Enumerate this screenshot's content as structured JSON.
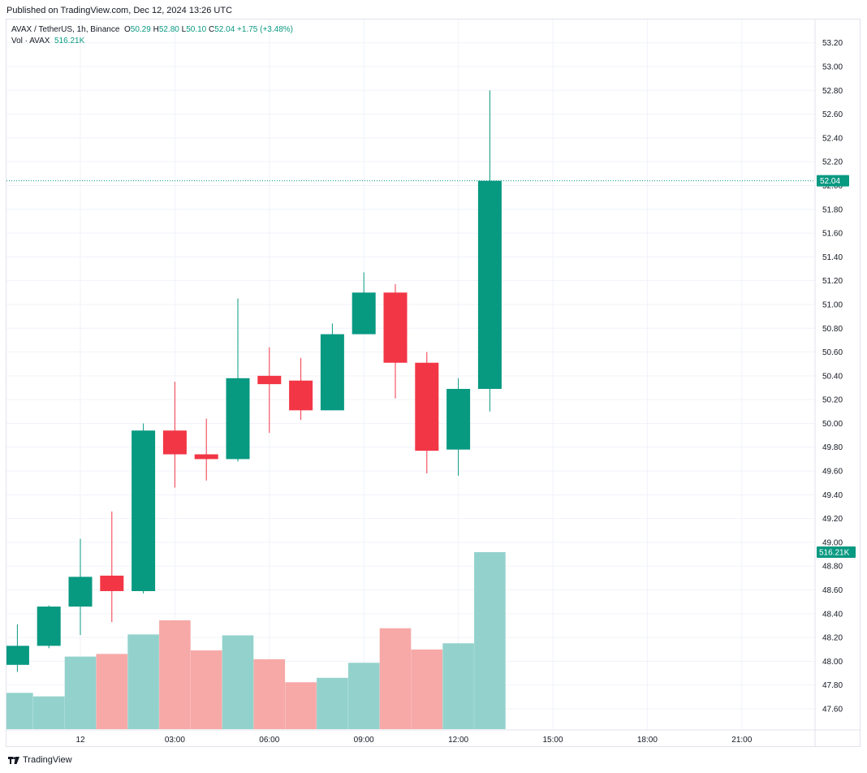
{
  "published_label": "Published on TradingView.com, Dec 12, 2024 13:26 UTC",
  "footer_brand": "TradingView",
  "legend": {
    "symbol": "AVAX / TetherUS, 1h, Binance",
    "o_label": "O",
    "o_value": "50.29",
    "h_label": "H",
    "h_value": "52.80",
    "l_label": "L",
    "l_value": "50.10",
    "c_label": "C",
    "c_value": "52.04",
    "change": "+1.75 (+3.48%)",
    "vol_label": "Vol · AVAX",
    "vol_value": "516.21K"
  },
  "colors": {
    "up": "#089981",
    "down": "#f23645",
    "vol_up": "#93d2cc",
    "vol_down": "#f7a9a7",
    "grid": "#f0f3fa",
    "price_line": "#089981"
  },
  "chart_data": {
    "type": "candlestick",
    "ylim": [
      47.5,
      53.3
    ],
    "y_ticks": [
      "53.20",
      "53.00",
      "52.80",
      "52.60",
      "52.40",
      "52.20",
      "52.00",
      "51.80",
      "51.60",
      "51.40",
      "51.20",
      "51.00",
      "50.80",
      "50.60",
      "50.40",
      "50.20",
      "50.00",
      "49.80",
      "49.60",
      "49.40",
      "49.20",
      "49.00",
      "48.80",
      "48.60",
      "48.40",
      "48.20",
      "48.00",
      "47.80",
      "47.60"
    ],
    "x_ticks": [
      {
        "label": "12",
        "hour": 0
      },
      {
        "label": "03:00",
        "hour": 3
      },
      {
        "label": "06:00",
        "hour": 6
      },
      {
        "label": "09:00",
        "hour": 9
      },
      {
        "label": "12:00",
        "hour": 12
      },
      {
        "label": "15:00",
        "hour": 15
      },
      {
        "label": "18:00",
        "hour": 18
      },
      {
        "label": "21:00",
        "hour": 21
      }
    ],
    "last_price_label": "52.04",
    "last_price": 52.04,
    "last_volume_label": "516.21K",
    "candles": [
      {
        "hour": -2,
        "o": 47.97,
        "h": 48.31,
        "l": 47.91,
        "c": 48.13,
        "v": 0.205
      },
      {
        "hour": -1,
        "o": 48.13,
        "h": 48.47,
        "l": 48.11,
        "c": 48.46,
        "v": 0.185
      },
      {
        "hour": 0,
        "o": 48.46,
        "h": 49.03,
        "l": 48.22,
        "c": 48.71,
        "v": 0.41
      },
      {
        "hour": 1,
        "o": 48.72,
        "h": 49.26,
        "l": 48.33,
        "c": 48.59,
        "v": 0.425
      },
      {
        "hour": 2,
        "o": 48.59,
        "h": 50.0,
        "l": 48.57,
        "c": 49.94,
        "v": 0.535
      },
      {
        "hour": 3,
        "o": 49.94,
        "h": 50.35,
        "l": 49.46,
        "c": 49.74,
        "v": 0.615
      },
      {
        "hour": 4,
        "o": 49.74,
        "h": 50.04,
        "l": 49.52,
        "c": 49.7,
        "v": 0.445
      },
      {
        "hour": 5,
        "o": 49.7,
        "h": 51.05,
        "l": 49.68,
        "c": 50.38,
        "v": 0.53
      },
      {
        "hour": 6,
        "o": 50.4,
        "h": 50.64,
        "l": 49.92,
        "c": 50.33,
        "v": 0.395
      },
      {
        "hour": 7,
        "o": 50.36,
        "h": 50.55,
        "l": 50.03,
        "c": 50.11,
        "v": 0.265
      },
      {
        "hour": 8,
        "o": 50.11,
        "h": 50.84,
        "l": 50.11,
        "c": 50.75,
        "v": 0.29
      },
      {
        "hour": 9,
        "o": 50.75,
        "h": 51.27,
        "l": 50.75,
        "c": 51.1,
        "v": 0.375
      },
      {
        "hour": 10,
        "o": 51.1,
        "h": 51.17,
        "l": 50.21,
        "c": 50.51,
        "v": 0.57
      },
      {
        "hour": 11,
        "o": 50.51,
        "h": 50.6,
        "l": 49.58,
        "c": 49.77,
        "v": 0.45
      },
      {
        "hour": 12,
        "o": 49.78,
        "h": 50.38,
        "l": 49.56,
        "c": 50.29,
        "v": 0.485
      },
      {
        "hour": 13,
        "o": 50.29,
        "h": 52.8,
        "l": 50.1,
        "c": 52.04,
        "v": 1.0
      }
    ]
  }
}
